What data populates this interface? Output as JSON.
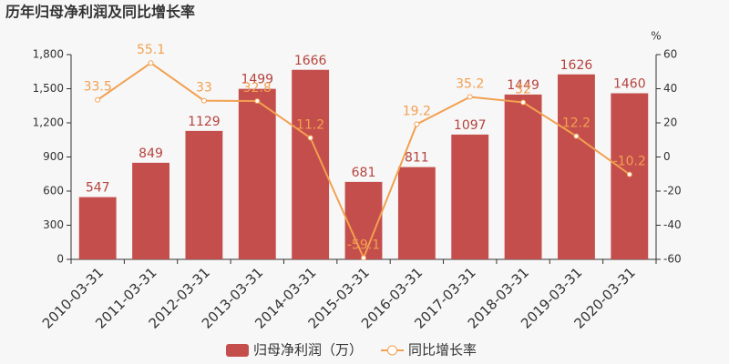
{
  "chart_data": {
    "type": "bar",
    "title": "历年归母净利润及同比增长率",
    "y2_label": "%",
    "categories": [
      "2010-03-31",
      "2011-03-31",
      "2012-03-31",
      "2013-03-31",
      "2014-03-31",
      "2015-03-31",
      "2016-03-31",
      "2017-03-31",
      "2018-03-31",
      "2019-03-31",
      "2020-03-31"
    ],
    "series": [
      {
        "name": "归母净利润（万）",
        "color": "#c44e4c",
        "label_color": "#b5443f",
        "values": [
          547,
          849,
          1129,
          1499,
          1666,
          681,
          811,
          1097,
          1449,
          1626,
          1460
        ]
      },
      {
        "name": "同比增长率",
        "type": "line",
        "axis": "y2",
        "color": "#f2a050",
        "values": [
          33.5,
          55.1,
          33,
          32.8,
          11.2,
          -59.1,
          19.2,
          35.2,
          32,
          12.2,
          -10.2
        ]
      }
    ],
    "ylim": [
      0,
      1800
    ],
    "yticks": [
      0,
      300,
      600,
      900,
      {
        "value": 1200,
        "label": "1,200"
      },
      {
        "value": 1500,
        "label": "1,500"
      },
      {
        "value": 1800,
        "label": "1,800"
      }
    ],
    "y2lim": [
      -60,
      60
    ],
    "y2ticks": [
      -60,
      -40,
      -20,
      0,
      20,
      40,
      60
    ],
    "grid": false
  }
}
